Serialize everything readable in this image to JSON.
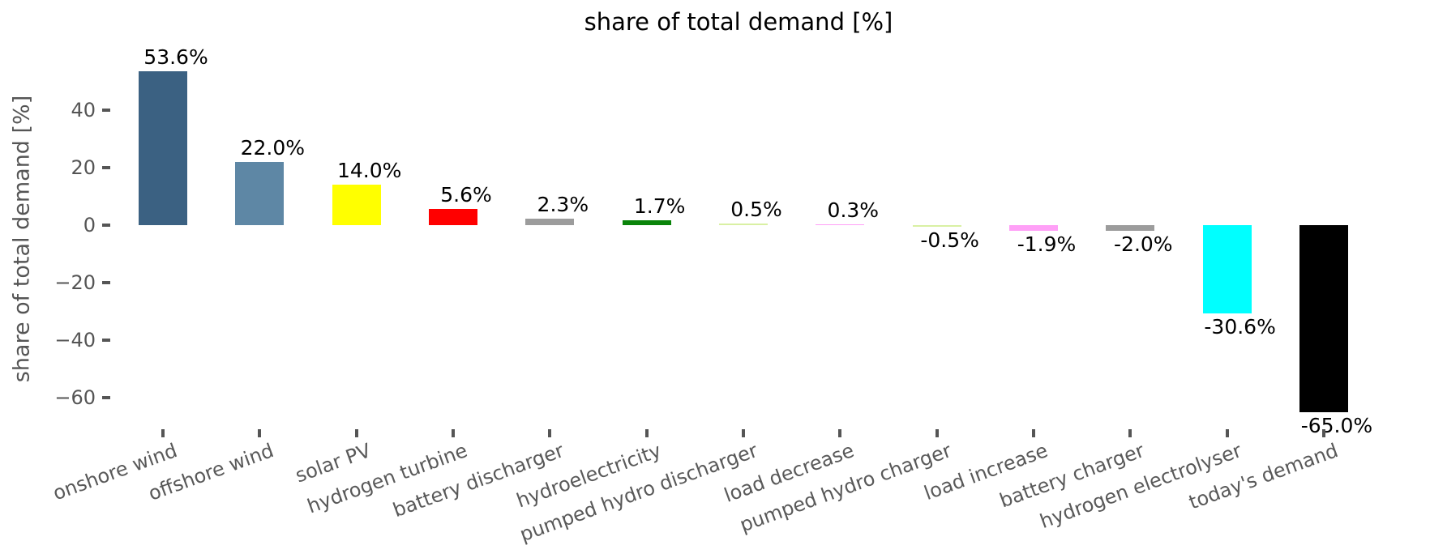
{
  "chart_data": {
    "type": "bar",
    "title": "share of total demand [%]",
    "ylabel": "share of total demand [%]",
    "xlabel": "",
    "ylim": [
      -71,
      59.5
    ],
    "grid": false,
    "legend_position": "none",
    "background_color": "#ffffff",
    "title_color": "#000000",
    "axis_text_color": "#555555",
    "xtick_label_color": "#595959",
    "xtick_rotation_deg": 20,
    "yticks": [
      {
        "value": 40,
        "label": "40"
      },
      {
        "value": 20,
        "label": "20"
      },
      {
        "value": 0,
        "label": "0"
      },
      {
        "value": -20,
        "label": "−20"
      },
      {
        "value": -40,
        "label": "−40"
      },
      {
        "value": -60,
        "label": "−60"
      }
    ],
    "categories": [
      "onshore wind",
      "offshore wind",
      "solar PV",
      "hydrogen turbine",
      "battery discharger",
      "hydroelectricity",
      "pumped hydro discharger",
      "load decrease",
      "pumped hydro charger",
      "load increase",
      "battery charger",
      "hydrogen electrolyser",
      "today's demand"
    ],
    "values": [
      53.6,
      22.0,
      14.0,
      5.6,
      2.3,
      1.7,
      0.5,
      0.3,
      -0.5,
      -1.9,
      -2.0,
      -30.6,
      -65.0
    ],
    "value_labels": [
      "53.6%",
      "22.0%",
      "14.0%",
      "5.6%",
      "2.3%",
      "1.7%",
      "0.5%",
      "0.3%",
      "-0.5%",
      "-1.9%",
      "-2.0%",
      "-30.6%",
      "-65.0%"
    ],
    "bar_colors": [
      "#3B6182",
      "#5E87A5",
      "#FFFF00",
      "#FF0000",
      "#9C9C9C",
      "#0A840A",
      "#D9F0A3",
      "#FFA0F7",
      "#D9F0A3",
      "#FFA0F7",
      "#9C9C9C",
      "#00FFFF",
      "#000000"
    ]
  }
}
